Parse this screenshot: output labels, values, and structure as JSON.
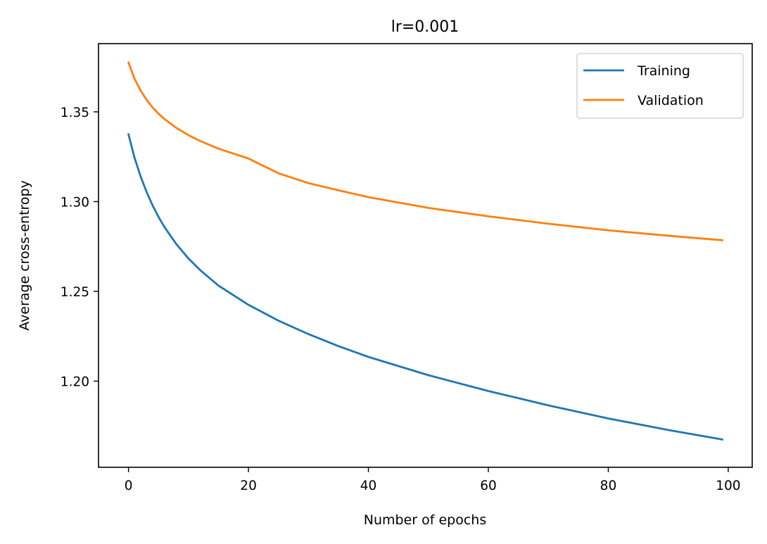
{
  "chart_data": {
    "type": "line",
    "title": "lr=0.001",
    "xlabel": "Number of epochs",
    "ylabel": "Average cross-entropy",
    "xlim": [
      -5,
      104
    ],
    "ylim": [
      1.152,
      1.388
    ],
    "xticks": [
      0,
      20,
      40,
      60,
      80,
      100
    ],
    "yticks": [
      1.2,
      1.25,
      1.3,
      1.35
    ],
    "xtick_labels": [
      "0",
      "20",
      "40",
      "60",
      "80",
      "100"
    ],
    "ytick_labels": [
      "1.20",
      "1.25",
      "1.30",
      "1.35"
    ],
    "grid": false,
    "legend_position": "top-right",
    "x": [
      0,
      1,
      2,
      3,
      4,
      5,
      6,
      8,
      10,
      12,
      15,
      20,
      25,
      30,
      35,
      40,
      50,
      60,
      70,
      80,
      90,
      99
    ],
    "series": [
      {
        "name": "Training",
        "color": "#1f77b4",
        "values": [
          1.3375,
          1.3245,
          1.3142,
          1.3055,
          1.298,
          1.2915,
          1.2858,
          1.2762,
          1.2683,
          1.2617,
          1.2532,
          1.2425,
          1.2337,
          1.2262,
          1.2195,
          1.2135,
          1.2033,
          1.1945,
          1.1865,
          1.1792,
          1.1728,
          1.1675
        ]
      },
      {
        "name": "Validation",
        "color": "#ff7f0e",
        "values": [
          1.3775,
          1.3685,
          1.362,
          1.3568,
          1.3525,
          1.349,
          1.346,
          1.341,
          1.337,
          1.3337,
          1.3295,
          1.324,
          1.3158,
          1.3103,
          1.3063,
          1.3025,
          1.2965,
          1.2918,
          1.2877,
          1.284,
          1.281,
          1.2785
        ]
      }
    ]
  }
}
